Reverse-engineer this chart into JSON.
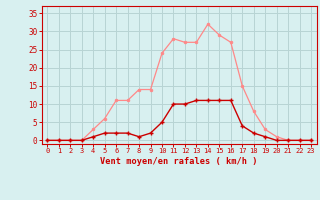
{
  "x": [
    0,
    1,
    2,
    3,
    4,
    5,
    6,
    7,
    8,
    9,
    10,
    11,
    12,
    13,
    14,
    15,
    16,
    17,
    18,
    19,
    20,
    21,
    22,
    23
  ],
  "rafales": [
    0,
    0,
    0,
    0,
    3,
    6,
    11,
    11,
    14,
    14,
    24,
    28,
    27,
    27,
    32,
    29,
    27,
    15,
    8,
    3,
    1,
    0,
    0,
    0
  ],
  "moyen": [
    0,
    0,
    0,
    0,
    1,
    2,
    2,
    2,
    1,
    2,
    5,
    10,
    10,
    11,
    11,
    11,
    11,
    4,
    2,
    1,
    0,
    0,
    0,
    0
  ],
  "bg_color": "#d8f0f0",
  "grid_color": "#b8d4d4",
  "line_color_rafales": "#ff8888",
  "line_color_moyen": "#cc0000",
  "xlabel": "Vent moyen/en rafales ( km/h )",
  "xlabel_color": "#cc0000",
  "tick_color": "#cc0000",
  "axis_color": "#cc0000",
  "yticks": [
    0,
    5,
    10,
    15,
    20,
    25,
    30,
    35
  ],
  "xticks": [
    0,
    1,
    2,
    3,
    4,
    5,
    6,
    7,
    8,
    9,
    10,
    11,
    12,
    13,
    14,
    15,
    16,
    17,
    18,
    19,
    20,
    21,
    22,
    23
  ],
  "ylim": [
    -1,
    37
  ],
  "xlim": [
    -0.5,
    23.5
  ]
}
